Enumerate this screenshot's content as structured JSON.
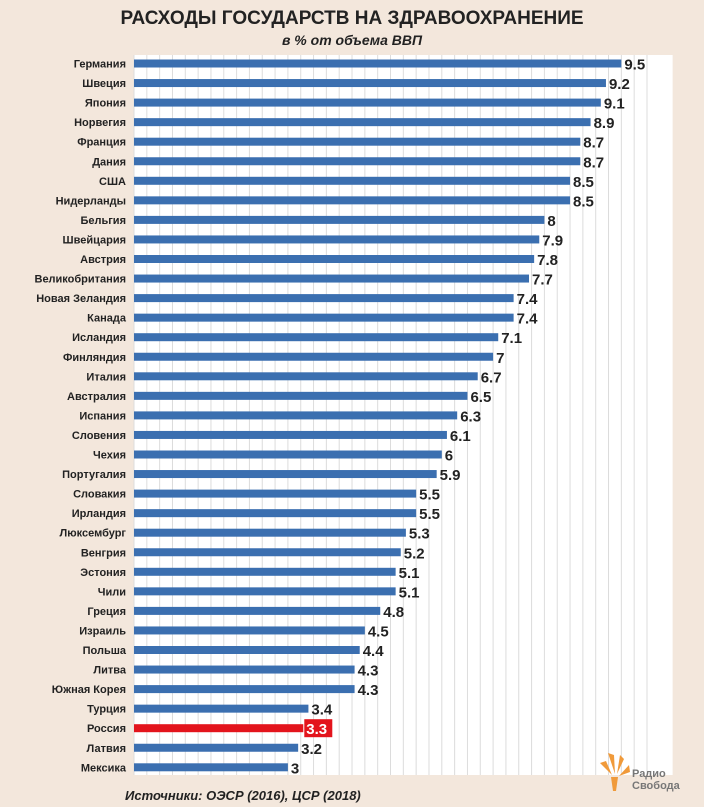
{
  "chart_data": {
    "type": "bar",
    "orientation": "horizontal",
    "title": "РАСХОДЫ ГОСУДАРСТВ НА ЗДРАВООХРАНЕНИЕ",
    "subtitle": "в % от объема ВВП",
    "categories": [
      "Германия",
      "Швеция",
      "Япония",
      "Норвегия",
      "Франция",
      "Дания",
      "США",
      "Нидерланды",
      "Бельгия",
      "Швейцария",
      "Австрия",
      "Великобритания",
      "Новая Зеландия",
      "Канада",
      "Исландия",
      "Финляндия",
      "Италия",
      "Австралия",
      "Испания",
      "Словения",
      "Чехия",
      "Португалия",
      "Словакия",
      "Ирландия",
      "Люксембург",
      "Венгрия",
      "Эстония",
      "Чили",
      "Греция",
      "Израиль",
      "Польша",
      "Литва",
      "Южная Корея",
      "Турция",
      "Россия",
      "Латвия",
      "Мексика"
    ],
    "values": [
      9.5,
      9.2,
      9.1,
      8.9,
      8.7,
      8.7,
      8.5,
      8.5,
      8,
      7.9,
      7.8,
      7.7,
      7.4,
      7.4,
      7.1,
      7,
      6.7,
      6.5,
      6.3,
      6.1,
      6,
      5.9,
      5.5,
      5.5,
      5.3,
      5.2,
      5.1,
      5.1,
      4.8,
      4.5,
      4.4,
      4.3,
      4.3,
      3.4,
      3.3,
      3.2,
      3
    ],
    "labels": [
      "9.5",
      "9.2",
      "9.1",
      "8.9",
      "8.7",
      "8.7",
      "8.5",
      "8.5",
      "8",
      "7.9",
      "7.8",
      "7.7",
      "7.4",
      "7.4",
      "7.1",
      "7",
      "6.7",
      "6.5",
      "6.3",
      "6.1",
      "6",
      "5.9",
      "5.5",
      "5.5",
      "5.3",
      "5.2",
      "5.1",
      "5.1",
      "4.8",
      "4.5",
      "4.4",
      "4.3",
      "4.3",
      "3.4",
      "3.3",
      "3.2",
      "3"
    ],
    "highlight": "Россия",
    "xlim": [
      0,
      10
    ],
    "grid": true,
    "colors": {
      "bar": "#3b6fb0",
      "highlight": "#e3141c",
      "background": "#f3e7dc",
      "grid": "#dcdcdc"
    }
  },
  "footer": {
    "source": "Источники: ОЭСР (2016), ЦСР (2018)",
    "logo_line1": "Радио",
    "logo_line2": "Свобода",
    "logo_icon": "radio-svoboda-flame-icon"
  }
}
